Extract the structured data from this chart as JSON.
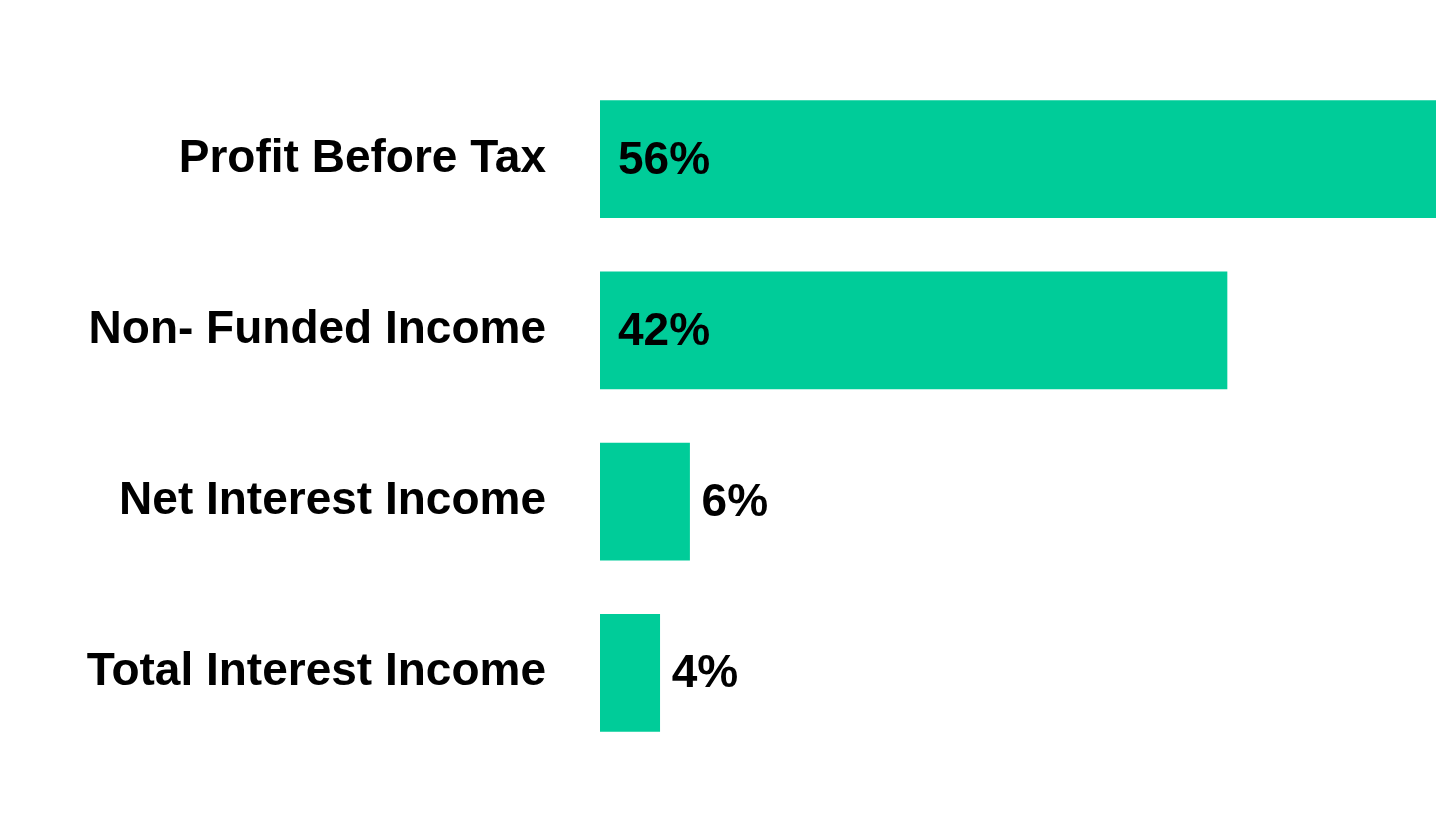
{
  "chart_data": {
    "type": "bar",
    "orientation": "horizontal",
    "categories": [
      "Profit Before Tax",
      "Non- Funded Income",
      "Net Interest Income",
      "Total Interest Income"
    ],
    "values": [
      56,
      42,
      6,
      4
    ],
    "color": "#00cc99",
    "xlim": [
      0,
      56
    ],
    "tick_labels": "y",
    "legend": false,
    "data_labels": true,
    "value_labels": [
      "56%",
      "42%",
      "6%",
      "4%"
    ]
  }
}
